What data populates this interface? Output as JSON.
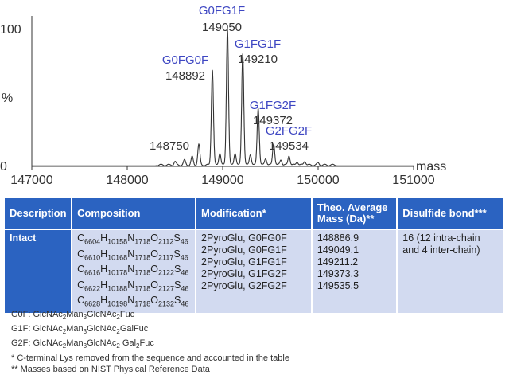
{
  "chart_data": {
    "type": "line",
    "xlabel": "mass",
    "ylabel": "%",
    "xlim": [
      147000,
      151000
    ],
    "ylim": [
      0,
      100
    ],
    "x_ticks": [
      "147000",
      "148000",
      "149000",
      "150000",
      "151000"
    ],
    "y_ticks": [
      "0",
      "100"
    ],
    "grid": false,
    "peaks": [
      {
        "x": 148500,
        "y": 2.5
      },
      {
        "x": 148600,
        "y": 3.5
      },
      {
        "x": 148680,
        "y": 6
      },
      {
        "x": 148750,
        "y": 15
      },
      {
        "x": 148892,
        "y": 70
      },
      {
        "x": 148970,
        "y": 9
      },
      {
        "x": 149050,
        "y": 100
      },
      {
        "x": 149130,
        "y": 9
      },
      {
        "x": 149210,
        "y": 82
      },
      {
        "x": 149290,
        "y": 8
      },
      {
        "x": 149372,
        "y": 42
      },
      {
        "x": 149450,
        "y": 5
      },
      {
        "x": 149534,
        "y": 16
      },
      {
        "x": 149610,
        "y": 4
      },
      {
        "x": 149695,
        "y": 7
      },
      {
        "x": 149780,
        "y": 2.5
      },
      {
        "x": 149860,
        "y": 3
      },
      {
        "x": 150000,
        "y": 1.5
      }
    ],
    "annotations": [
      {
        "glycoform": "G0FG1F",
        "mass": "149050"
      },
      {
        "glycoform": "G1FG1F",
        "mass": "149210"
      },
      {
        "glycoform": "G0FG0F",
        "mass": "148892"
      },
      {
        "glycoform": "G1FG2F",
        "mass": "149372"
      },
      {
        "glycoform": "G2FG2F",
        "mass": "149534"
      },
      {
        "glycoform": "",
        "mass": "148750"
      }
    ]
  },
  "table": {
    "headers": [
      "Description",
      "Composition",
      "Modification*",
      "Theo. Average Mass (Da)**",
      "Disulfide bond***"
    ],
    "description": "Intact",
    "compositions": [
      [
        [
          "C",
          "6604"
        ],
        [
          "H",
          "10158"
        ],
        [
          "N",
          "1718"
        ],
        [
          "O",
          "2112"
        ],
        [
          "S",
          "46"
        ]
      ],
      [
        [
          "C",
          "6610"
        ],
        [
          "H",
          "10168"
        ],
        [
          "N",
          "1718"
        ],
        [
          "O",
          "2117"
        ],
        [
          "S",
          "46"
        ]
      ],
      [
        [
          "C",
          "6616"
        ],
        [
          "H",
          "10178"
        ],
        [
          "N",
          "1718"
        ],
        [
          "O",
          "2122"
        ],
        [
          "S",
          "46"
        ]
      ],
      [
        [
          "C",
          "6622"
        ],
        [
          "H",
          "10188"
        ],
        [
          "N",
          "1718"
        ],
        [
          "O",
          "2127"
        ],
        [
          "S",
          "46"
        ]
      ],
      [
        [
          "C",
          "6628"
        ],
        [
          "H",
          "10198"
        ],
        [
          "N",
          "1718"
        ],
        [
          "O",
          "2132"
        ],
        [
          "S",
          "46"
        ]
      ]
    ],
    "modifications": [
      "2PyroGlu, G0FG0F",
      "2PyroGlu, G0FG1F",
      "2PyroGlu, G1FG1F",
      "2PyroGlu, G1FG2F",
      "2PyroGlu, G2FG2F"
    ],
    "masses": [
      "148886.9",
      "149049.1",
      "149211.2",
      "149373.3",
      "149535.5"
    ],
    "disulfide": "16 (12 intra-chain and 4 inter-chain)"
  },
  "notes": {
    "g0f": [
      [
        "G0F: GlcNAc",
        ""
      ],
      [
        "",
        "2"
      ],
      [
        "Man",
        ""
      ],
      [
        "",
        "3"
      ],
      [
        "GlcNAc",
        ""
      ],
      [
        "",
        "2"
      ],
      [
        "Fuc",
        ""
      ]
    ],
    "g1f": [
      [
        "G1F: GlcNAc",
        ""
      ],
      [
        "",
        "2"
      ],
      [
        "Man",
        ""
      ],
      [
        "",
        "3"
      ],
      [
        "GlcNAc",
        ""
      ],
      [
        "",
        "2"
      ],
      [
        "GalFuc",
        ""
      ]
    ],
    "g2f": [
      [
        "G2F: GlcNAc",
        ""
      ],
      [
        "",
        "2"
      ],
      [
        "Man",
        ""
      ],
      [
        "",
        "3"
      ],
      [
        "GlcNAc",
        ""
      ],
      [
        "",
        "2"
      ],
      [
        " Gal",
        ""
      ],
      [
        "",
        "2"
      ],
      [
        "Fuc",
        ""
      ]
    ],
    "star1": "*   C-terminal Lys removed from the sequence and accounted in the table",
    "star2": "**  Masses based on NIST Physical Reference Data"
  },
  "colors": {
    "header_blue": "#2b63c1",
    "cell_light": "#d2daf0",
    "glycoform_label": "#3d46c2",
    "trace": "#333333"
  }
}
